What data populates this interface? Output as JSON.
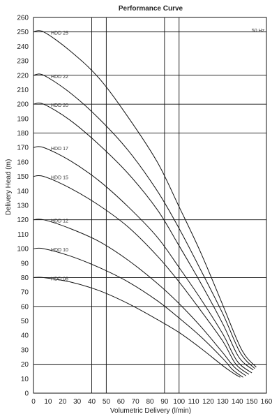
{
  "chart_data": {
    "type": "line",
    "title": "Performance Curve",
    "xlabel": "Volumetric Delivery (l/min)",
    "ylabel": "Delivery Head (m)",
    "annotation": "50 Hz",
    "xlim": [
      0,
      160
    ],
    "ylim": [
      0,
      260
    ],
    "x_ticks": [
      0,
      10,
      20,
      30,
      40,
      50,
      60,
      70,
      80,
      90,
      100,
      110,
      120,
      130,
      140,
      150,
      160
    ],
    "y_ticks": [
      0,
      10,
      20,
      30,
      40,
      50,
      60,
      70,
      80,
      90,
      100,
      110,
      120,
      130,
      140,
      150,
      160,
      170,
      180,
      190,
      200,
      210,
      220,
      230,
      240,
      250,
      260
    ],
    "grid": {
      "horizontal_at": [
        20,
        60,
        80,
        120,
        180,
        200,
        220,
        250
      ],
      "vertical_at": [
        40,
        50,
        90,
        100,
        160
      ]
    },
    "series": [
      {
        "name": "HDD 25",
        "points": [
          [
            7,
            250
          ],
          [
            25,
            237
          ],
          [
            45,
            218
          ],
          [
            65,
            191
          ],
          [
            85,
            160
          ],
          [
            100,
            129
          ],
          [
            115,
            97
          ],
          [
            130,
            61
          ],
          [
            143,
            30
          ],
          [
            153,
            18
          ]
        ]
      },
      {
        "name": "HDD 22",
        "points": [
          [
            7,
            220
          ],
          [
            25,
            208
          ],
          [
            45,
            190
          ],
          [
            65,
            168
          ],
          [
            85,
            140
          ],
          [
            100,
            114
          ],
          [
            115,
            85
          ],
          [
            130,
            55
          ],
          [
            142,
            28
          ],
          [
            152,
            17
          ]
        ]
      },
      {
        "name": "HDD 20",
        "points": [
          [
            7,
            200
          ],
          [
            25,
            189
          ],
          [
            45,
            172
          ],
          [
            65,
            152
          ],
          [
            85,
            127
          ],
          [
            100,
            102
          ],
          [
            115,
            76
          ],
          [
            130,
            48
          ],
          [
            141,
            25
          ],
          [
            151,
            16
          ]
        ]
      },
      {
        "name": "HDD 17",
        "points": [
          [
            7,
            170
          ],
          [
            25,
            161
          ],
          [
            45,
            147
          ],
          [
            65,
            129
          ],
          [
            85,
            108
          ],
          [
            100,
            87
          ],
          [
            115,
            65
          ],
          [
            130,
            41
          ],
          [
            140,
            22
          ],
          [
            150,
            14
          ]
        ]
      },
      {
        "name": "HDD 15",
        "points": [
          [
            7,
            150
          ],
          [
            25,
            142
          ],
          [
            45,
            130
          ],
          [
            65,
            115
          ],
          [
            85,
            95
          ],
          [
            100,
            77
          ],
          [
            115,
            57
          ],
          [
            130,
            36
          ],
          [
            139,
            20
          ],
          [
            148,
            13
          ]
        ]
      },
      {
        "name": "HDD 12",
        "points": [
          [
            7,
            120
          ],
          [
            25,
            114
          ],
          [
            45,
            105
          ],
          [
            65,
            92
          ],
          [
            85,
            76
          ],
          [
            100,
            62
          ],
          [
            115,
            46
          ],
          [
            130,
            28
          ],
          [
            138,
            18
          ],
          [
            146,
            12
          ]
        ]
      },
      {
        "name": "HDD 10",
        "points": [
          [
            7,
            100
          ],
          [
            25,
            95
          ],
          [
            45,
            87
          ],
          [
            65,
            77
          ],
          [
            85,
            64
          ],
          [
            100,
            52
          ],
          [
            115,
            39
          ],
          [
            130,
            24
          ],
          [
            137,
            16
          ],
          [
            144,
            11
          ]
        ]
      },
      {
        "name": "HDD 08",
        "points": [
          [
            7,
            80
          ],
          [
            25,
            77
          ],
          [
            45,
            71
          ],
          [
            65,
            62
          ],
          [
            85,
            51
          ],
          [
            100,
            42
          ],
          [
            115,
            31
          ],
          [
            130,
            19
          ],
          [
            137,
            14
          ],
          [
            142,
            11
          ]
        ]
      }
    ]
  }
}
